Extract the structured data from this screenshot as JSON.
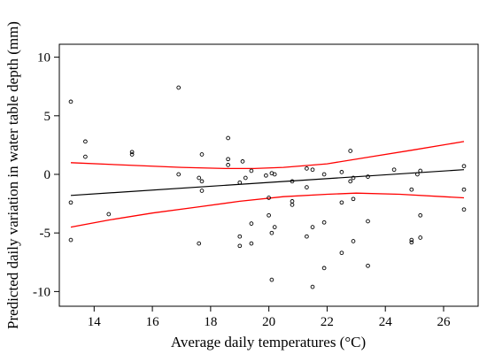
{
  "chart_data": {
    "type": "scatter",
    "title": "",
    "xlabel": "Average daily temperatures (°C)",
    "ylabel": "Predicted daily variation in water table depth (mm)",
    "xlim": [
      13.2,
      26.7
    ],
    "ylim": [
      -10.5,
      10.5
    ],
    "xticks": [
      14,
      16,
      18,
      20,
      22,
      24,
      26
    ],
    "yticks": [
      -10,
      -5,
      0,
      5,
      10
    ],
    "grid": false,
    "legend": "none",
    "colors": {
      "points": "#000000",
      "fit": "#000000",
      "ci": "#ff0000"
    },
    "points": [
      [
        13.2,
        6.2
      ],
      [
        13.2,
        -2.4
      ],
      [
        13.2,
        -5.6
      ],
      [
        13.7,
        2.8
      ],
      [
        13.7,
        1.5
      ],
      [
        14.5,
        -3.4
      ],
      [
        15.3,
        1.9
      ],
      [
        15.3,
        1.7
      ],
      [
        16.9,
        7.4
      ],
      [
        16.9,
        0.0
      ],
      [
        17.6,
        -0.3
      ],
      [
        17.7,
        -0.6
      ],
      [
        17.7,
        1.7
      ],
      [
        17.7,
        -1.4
      ],
      [
        17.6,
        -5.9
      ],
      [
        18.6,
        3.1
      ],
      [
        18.6,
        1.3
      ],
      [
        18.6,
        0.8
      ],
      [
        19.0,
        -0.7
      ],
      [
        19.0,
        -6.1
      ],
      [
        19.0,
        -5.3
      ],
      [
        19.1,
        1.1
      ],
      [
        19.2,
        -0.3
      ],
      [
        19.4,
        -5.9
      ],
      [
        19.4,
        -4.2
      ],
      [
        19.4,
        0.3
      ],
      [
        19.9,
        -0.1
      ],
      [
        20.0,
        -2.0
      ],
      [
        20.0,
        -3.5
      ],
      [
        20.1,
        -5.0
      ],
      [
        20.1,
        0.1
      ],
      [
        20.2,
        0.0
      ],
      [
        20.1,
        -9.0
      ],
      [
        20.2,
        -4.5
      ],
      [
        20.8,
        -2.3
      ],
      [
        20.8,
        -2.6
      ],
      [
        20.8,
        -0.6
      ],
      [
        21.3,
        -1.1
      ],
      [
        21.3,
        -5.3
      ],
      [
        21.3,
        0.5
      ],
      [
        21.5,
        0.4
      ],
      [
        21.5,
        -4.5
      ],
      [
        21.5,
        -9.6
      ],
      [
        21.9,
        -8.0
      ],
      [
        21.9,
        -4.1
      ],
      [
        21.9,
        0.0
      ],
      [
        22.5,
        -2.4
      ],
      [
        22.5,
        -6.7
      ],
      [
        22.5,
        0.2
      ],
      [
        22.8,
        2.0
      ],
      [
        22.8,
        -0.6
      ],
      [
        22.9,
        -0.3
      ],
      [
        22.9,
        -2.1
      ],
      [
        22.9,
        -5.7
      ],
      [
        23.4,
        -0.2
      ],
      [
        23.4,
        -4.0
      ],
      [
        23.4,
        -7.8
      ],
      [
        24.3,
        0.4
      ],
      [
        24.9,
        -1.3
      ],
      [
        24.9,
        -5.6
      ],
      [
        24.9,
        -5.8
      ],
      [
        25.2,
        0.3
      ],
      [
        25.2,
        -3.5
      ],
      [
        25.2,
        -5.4
      ],
      [
        25.1,
        0.0
      ],
      [
        26.7,
        0.7
      ],
      [
        26.7,
        -1.3
      ],
      [
        26.7,
        -3.0
      ]
    ],
    "fit": [
      [
        13.2,
        -1.8
      ],
      [
        26.7,
        0.4
      ]
    ],
    "upper_ci": [
      [
        13.2,
        1.0
      ],
      [
        15.0,
        0.8
      ],
      [
        17.0,
        0.6
      ],
      [
        18.5,
        0.5
      ],
      [
        19.5,
        0.5
      ],
      [
        20.5,
        0.6
      ],
      [
        22.0,
        0.9
      ],
      [
        23.5,
        1.5
      ],
      [
        25.0,
        2.1
      ],
      [
        26.7,
        2.8
      ]
    ],
    "lower_ci": [
      [
        13.2,
        -4.5
      ],
      [
        14.5,
        -3.9
      ],
      [
        16.0,
        -3.3
      ],
      [
        17.5,
        -2.8
      ],
      [
        19.0,
        -2.3
      ],
      [
        20.5,
        -1.9
      ],
      [
        22.0,
        -1.7
      ],
      [
        23.0,
        -1.6
      ],
      [
        24.5,
        -1.7
      ],
      [
        26.7,
        -2.0
      ]
    ]
  }
}
